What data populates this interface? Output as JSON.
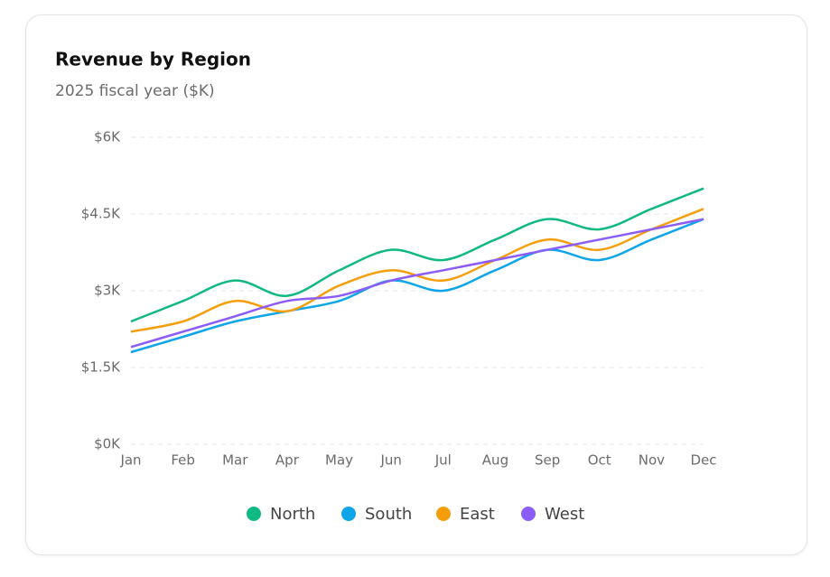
{
  "chart_data": {
    "type": "line",
    "title": "Revenue by Region",
    "subtitle": "2025 fiscal year ($K)",
    "categories": [
      "Jan",
      "Feb",
      "Mar",
      "Apr",
      "May",
      "Jun",
      "Jul",
      "Aug",
      "Sep",
      "Oct",
      "Nov",
      "Dec"
    ],
    "series": [
      {
        "name": "North",
        "color": "#10b981",
        "values": [
          2.4,
          2.8,
          3.2,
          2.9,
          3.4,
          3.8,
          3.6,
          4.0,
          4.4,
          4.2,
          4.6,
          5.0
        ]
      },
      {
        "name": "South",
        "color": "#0ea5e9",
        "values": [
          1.8,
          2.1,
          2.4,
          2.6,
          2.8,
          3.2,
          3.0,
          3.4,
          3.8,
          3.6,
          4.0,
          4.4
        ]
      },
      {
        "name": "East",
        "color": "#f59e0b",
        "values": [
          2.2,
          2.4,
          2.8,
          2.6,
          3.1,
          3.4,
          3.2,
          3.6,
          4.0,
          3.8,
          4.2,
          4.6
        ]
      },
      {
        "name": "West",
        "color": "#8b5cf6",
        "values": [
          1.9,
          2.2,
          2.5,
          2.8,
          2.9,
          3.2,
          3.4,
          3.6,
          3.8,
          4.0,
          4.2,
          4.4
        ]
      }
    ],
    "ylim": [
      0,
      6
    ],
    "yticks": [
      {
        "value": 0,
        "label": "$0K"
      },
      {
        "value": 1.5,
        "label": "$1.5K"
      },
      {
        "value": 3,
        "label": "$3K"
      },
      {
        "value": 4.5,
        "label": "$4.5K"
      },
      {
        "value": 6,
        "label": "$6K"
      }
    ],
    "grid": true,
    "legend": "bottom"
  }
}
